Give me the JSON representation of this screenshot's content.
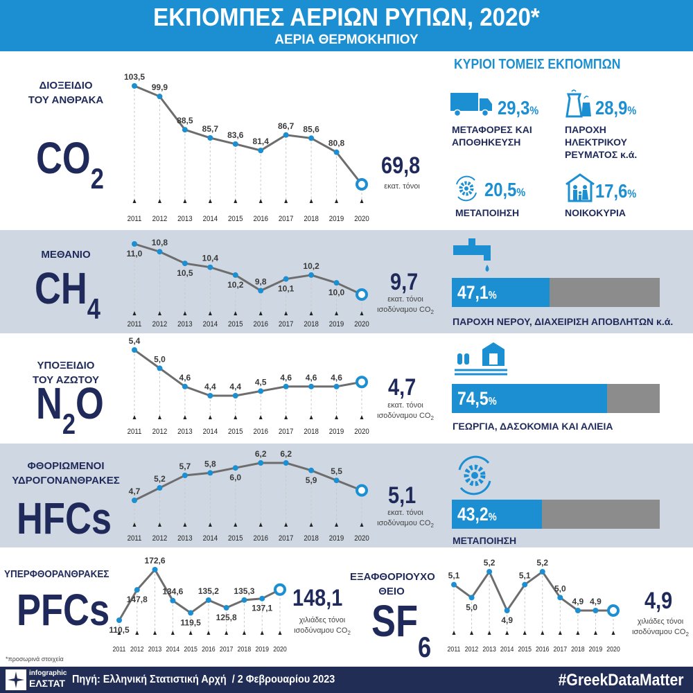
{
  "header": {
    "title": "ΕΚΠΟΜΠΕΣ ΑΕΡΙΩΝ ΡΥΠΩΝ, 2020*",
    "subtitle": "ΑΕΡΙΑ ΘΕΡΜΟΚΗΠΙΟΥ"
  },
  "sectors_title": "ΚΥΡΙΟΙ ΤΟΜΕΙΣ ΕΚΠΟΜΠΩΝ",
  "co2_sectors": [
    {
      "icon": "truck-icon",
      "value": "29,3",
      "pct": "%",
      "label": "ΜΕΤΑΦΟΡΕΣ ΚΑΙ ΑΠΟΘΗΚΕΥΣΗ"
    },
    {
      "icon": "power-plant-icon",
      "value": "28,9",
      "pct": "%",
      "label": "ΠΑΡΟΧΗ ΗΛΕΚΤΡΙΚΟΥ ΡΕΥΜΑΤΟΣ κ.ά."
    },
    {
      "icon": "gear-cycle-icon",
      "value": "20,5",
      "pct": "%",
      "label": "ΜΕΤΑΠΟΙΗΣΗ"
    },
    {
      "icon": "house-family-icon",
      "value": "17,6",
      "pct": "%",
      "label": "ΝΟΙΚΟΚΥΡΙΑ"
    }
  ],
  "gases": {
    "co2": {
      "name": "ΔΙΟΞΕΙΔΙΟ ΤΟΥ ΑΝΘΡΑΚΑ",
      "formula": "CO",
      "sub": "2",
      "value": "69,8",
      "unit": "εκατ. τόνοι"
    },
    "ch4": {
      "name": "ΜΕΘΑΝΙΟ",
      "formula": "CH",
      "sub": "4",
      "value": "9,7",
      "unit": "εκατ. τόνοι ισοδύναμου CO",
      "unit_sub": "2",
      "sector_pct": 47.1,
      "sector_value": "47,1",
      "sector_label": "ΠΑΡΟΧΗ ΝΕΡΟΥ, ΔΙΑΧΕΙΡΙΣΗ ΑΠΟΒΛΗΤΩΝ κ.ά."
    },
    "n2o": {
      "name": "ΥΠΟΞΕΙΔΙΟ ΤΟΥ ΑΖΩΤΟΥ",
      "formula_a": "N",
      "sub": "2",
      "formula_b": "O",
      "value": "4,7",
      "unit": "εκατ. τόνοι ισοδύναμου CO",
      "unit_sub": "2",
      "sector_pct": 74.5,
      "sector_value": "74,5",
      "sector_label": "ΓΕΩΡΓΙΑ, ΔΑΣΟΚΟΜΙΑ ΚΑΙ ΑΛΙΕΙΑ"
    },
    "hfcs": {
      "name": "ΦΘΟΡΙΩΜΕΝΟΙ ΥΔΡΟΓΟΝΑΝΘΡΑΚΕΣ",
      "formula": "HFCs",
      "value": "5,1",
      "unit": "εκατ. τόνοι ισοδύναμου CO",
      "unit_sub": "2",
      "sector_pct": 43.2,
      "sector_value": "43,2",
      "sector_label": "ΜΕΤΑΠΟΙΗΣΗ"
    },
    "pfcs": {
      "name": "ΥΠΕΡΦΘΟΡΑΝΘΡΑΚΕΣ",
      "formula": "PFCs",
      "value": "148,1",
      "unit": "χιλιάδες τόνοι ισοδύναμου CO",
      "unit_sub": "2"
    },
    "sf6": {
      "name": "ΕΞΑΦΘΟΡΙΟΥΧΟ ΘΕΙΟ",
      "formula": "SF",
      "sub": "6",
      "value": "4,9",
      "unit": "χιλιάδες τόνοι ισοδύναμου CO",
      "unit_sub": "2"
    }
  },
  "pct_sign": "%",
  "chart_data": [
    {
      "type": "line",
      "id": "co2",
      "x": [
        "2011",
        "2012",
        "2013",
        "2014",
        "2015",
        "2016",
        "2017",
        "2018",
        "2019",
        "2020"
      ],
      "values": [
        103.5,
        99.9,
        88.5,
        85.7,
        83.6,
        81.4,
        86.7,
        85.6,
        80.8,
        69.8
      ],
      "labels": [
        "103,5",
        "99,9",
        "88,5",
        "85,7",
        "83,6",
        "81,4",
        "86,7",
        "85,6",
        "80,8",
        ""
      ],
      "ylabel": "εκατ. τόνοι"
    },
    {
      "type": "line",
      "id": "ch4",
      "x": [
        "2011",
        "2012",
        "2013",
        "2014",
        "2015",
        "2016",
        "2017",
        "2018",
        "2019",
        "2020"
      ],
      "values": [
        11.0,
        10.8,
        10.5,
        10.4,
        10.2,
        9.8,
        10.1,
        10.2,
        10.0,
        9.7
      ],
      "labels": [
        "11,0",
        "10,8",
        "10,5",
        "10,4",
        "10,2",
        "9,8",
        "10,1",
        "10,2",
        "10,0",
        ""
      ]
    },
    {
      "type": "line",
      "id": "n2o",
      "x": [
        "2011",
        "2012",
        "2013",
        "2014",
        "2015",
        "2016",
        "2017",
        "2018",
        "2019",
        "2020"
      ],
      "values": [
        5.4,
        5.0,
        4.6,
        4.4,
        4.4,
        4.5,
        4.6,
        4.6,
        4.6,
        4.7
      ],
      "labels": [
        "5,4",
        "5,0",
        "4,6",
        "4,4",
        "4,4",
        "4,5",
        "4,6",
        "4,6",
        "4,6",
        ""
      ]
    },
    {
      "type": "line",
      "id": "hfcs",
      "x": [
        "2011",
        "2012",
        "2013",
        "2014",
        "2015",
        "2016",
        "2017",
        "2018",
        "2019",
        "2020"
      ],
      "values": [
        4.7,
        5.2,
        5.7,
        5.8,
        6.0,
        6.2,
        6.2,
        5.9,
        5.5,
        5.1
      ],
      "labels": [
        "4,7",
        "5,2",
        "5,7",
        "5,8",
        "6,0",
        "6,2",
        "6,2",
        "5,9",
        "5,5",
        ""
      ]
    },
    {
      "type": "line",
      "id": "pfcs",
      "x": [
        "2011",
        "2012",
        "2013",
        "2014",
        "2015",
        "2016",
        "2017",
        "2018",
        "2019",
        "2020"
      ],
      "values": [
        110.5,
        147.8,
        172.6,
        134.6,
        119.5,
        135.2,
        125.8,
        135.3,
        137.1,
        148.1
      ],
      "labels": [
        "110,5",
        "147,8",
        "172,6",
        "134,6",
        "119,5",
        "135,2",
        "125,8",
        "135,3",
        "137,1",
        ""
      ]
    },
    {
      "type": "line",
      "id": "sf6",
      "x": [
        "2011",
        "2012",
        "2013",
        "2014",
        "2015",
        "2016",
        "2017",
        "2018",
        "2019",
        "2020"
      ],
      "values": [
        5.1,
        5.0,
        5.2,
        4.9,
        5.1,
        5.2,
        5.0,
        4.9,
        4.9,
        4.9
      ],
      "labels": [
        "5,1",
        "5,0",
        "5,2",
        "4,9",
        "5,1",
        "5,2",
        "5,0",
        "4,9",
        "4,9",
        ""
      ]
    }
  ],
  "footnote": "*προσωρινά στοιχεία",
  "footer": {
    "logo_top": "infographic",
    "logo_bottom": "ΕΛΣΤΑΤ",
    "source": "Πηγή: Ελληνική Στατιστική Αρχή  / 2 Φεβρουαρίου 2023",
    "hashtag": "#GreekDataMatter"
  },
  "colors": {
    "blue": "#1b8fd2",
    "navy": "#1f2a5a",
    "grey_band": "#cfd8e2",
    "line": "#6d6d6d",
    "bar_rest": "#8c8c8c"
  }
}
